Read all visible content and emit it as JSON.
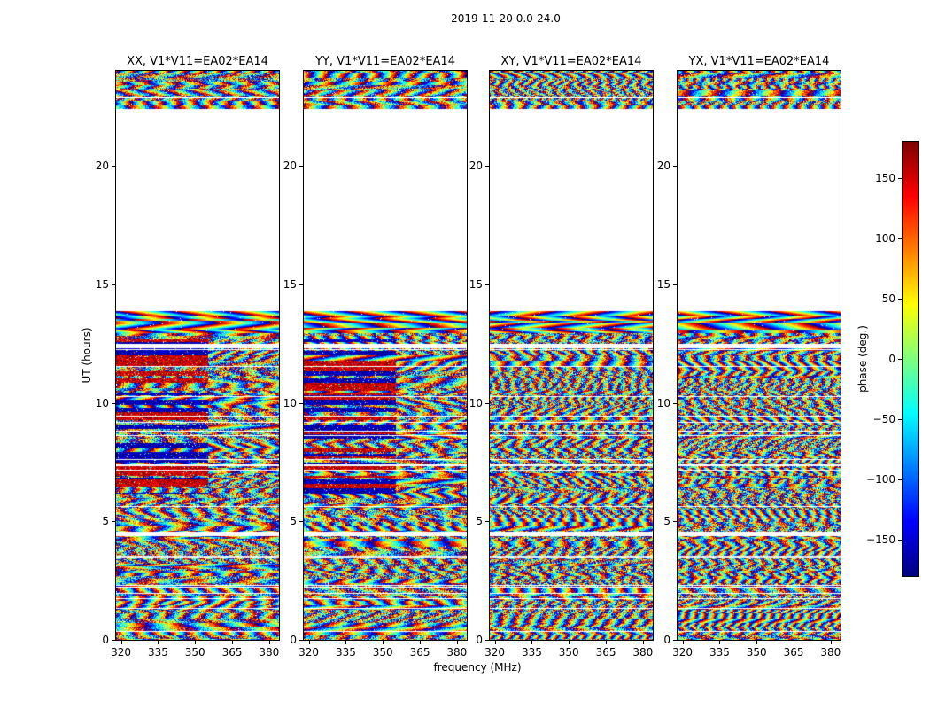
{
  "chart_data": {
    "type": "heatmap",
    "title": "2019-11-20 0.0-24.0",
    "xlabel": "frequency (MHz)",
    "ylabel": "UT (hours)",
    "x_range_mhz": [
      318,
      384
    ],
    "y_range_hours": [
      0,
      24
    ],
    "x_ticks": [
      "320",
      "335",
      "350",
      "365",
      "380"
    ],
    "x_tick_values": [
      320,
      335,
      350,
      365,
      380
    ],
    "y_ticks": [
      "0",
      "5",
      "10",
      "15",
      "20"
    ],
    "y_tick_values": [
      0,
      5,
      10,
      15,
      20
    ],
    "panels": [
      {
        "label": "XX",
        "title": "XX, V1*V11=EA02*EA14"
      },
      {
        "label": "YY",
        "title": "YY, V1*V11=EA02*EA14"
      },
      {
        "label": "XY",
        "title": "XY, V1*V11=EA02*EA14"
      },
      {
        "label": "YX",
        "title": "YX, V1*V11=EA02*EA14"
      }
    ],
    "colorbar": {
      "label": "phase (deg.)",
      "ticks": [
        "150",
        "100",
        "50",
        "0",
        "−50",
        "−100",
        "−150"
      ],
      "tick_values": [
        150,
        100,
        50,
        0,
        -50,
        -100,
        -150
      ],
      "range": [
        -180,
        180
      ],
      "colormap": "jet"
    },
    "data_present_hours": [
      [
        0.0,
        13.9
      ],
      [
        22.4,
        22.85
      ],
      [
        22.95,
        24.0
      ]
    ],
    "no_data_hours": [
      [
        13.9,
        22.4
      ]
    ],
    "gap_rows_hours": [
      [
        12.3,
        12.5
      ],
      [
        4.38,
        4.58
      ]
    ],
    "values_description": "interferometric visibility phases (noisy wrapped fringes, -180 to 180 deg) vs frequency and time; blank bands are unobserved time ranges"
  }
}
